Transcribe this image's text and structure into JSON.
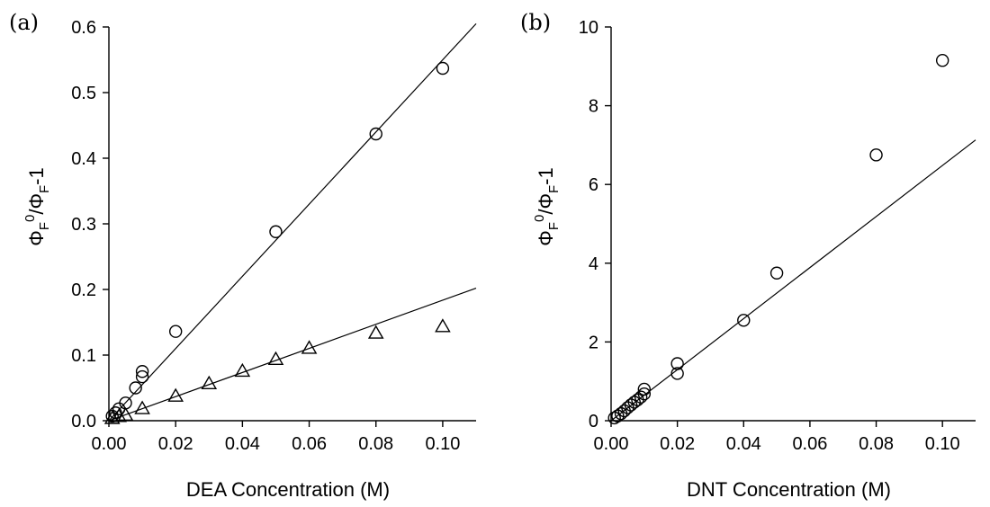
{
  "chart_data": [
    {
      "type": "scatter",
      "panel": "(a)",
      "xlabel": "DEA Concentration (M)",
      "ylabel": {
        "base": "Φ",
        "sub1": "F",
        "sup": "0",
        "mid": "/Φ",
        "sub2": "F",
        "tail": "-1"
      },
      "xlim": [
        0,
        0.11
      ],
      "ylim": [
        0,
        0.6
      ],
      "x_ticks": [
        0.0,
        0.02,
        0.04,
        0.06,
        0.08,
        0.1
      ],
      "x_tick_labels": [
        "0.00",
        "0.02",
        "0.04",
        "0.06",
        "0.08",
        "0.10"
      ],
      "y_ticks": [
        0.0,
        0.1,
        0.2,
        0.3,
        0.4,
        0.5,
        0.6
      ],
      "y_tick_labels": [
        "0.0",
        "0.1",
        "0.2",
        "0.3",
        "0.4",
        "0.5",
        "0.6"
      ],
      "grid": false,
      "series": [
        {
          "marker": "circle",
          "x": [
            0.001,
            0.002,
            0.003,
            0.005,
            0.008,
            0.01,
            0.01,
            0.02,
            0.05,
            0.08,
            0.1
          ],
          "y": [
            0.007,
            0.012,
            0.018,
            0.027,
            0.05,
            0.067,
            0.075,
            0.136,
            0.288,
            0.437,
            0.537
          ],
          "fit": {
            "x": [
              0,
              0.11
            ],
            "y": [
              0,
              0.605
            ]
          }
        },
        {
          "marker": "triangle",
          "x": [
            0.001,
            0.003,
            0.005,
            0.01,
            0.02,
            0.03,
            0.04,
            0.05,
            0.06,
            0.08,
            0.1
          ],
          "y": [
            0.003,
            0.006,
            0.008,
            0.018,
            0.037,
            0.056,
            0.075,
            0.093,
            0.11,
            0.133,
            0.143
          ],
          "fit": {
            "x": [
              0,
              0.11
            ],
            "y": [
              0,
              0.202
            ]
          }
        }
      ]
    },
    {
      "type": "scatter",
      "panel": "(b)",
      "xlabel": "DNT Concentration (M)",
      "ylabel": {
        "base": "Φ",
        "sub1": "F",
        "sup": "0",
        "mid": "/Φ",
        "sub2": "F",
        "tail": "-1"
      },
      "xlim": [
        0,
        0.11
      ],
      "ylim": [
        0,
        10
      ],
      "x_ticks": [
        0.0,
        0.02,
        0.04,
        0.06,
        0.08,
        0.1
      ],
      "x_tick_labels": [
        "0.00",
        "0.02",
        "0.04",
        "0.06",
        "0.08",
        "0.10"
      ],
      "y_ticks": [
        0,
        2,
        4,
        6,
        8,
        10
      ],
      "y_tick_labels": [
        "0",
        "2",
        "4",
        "6",
        "8",
        "10"
      ],
      "grid": false,
      "series": [
        {
          "marker": "circle",
          "x": [
            0.001,
            0.002,
            0.003,
            0.004,
            0.005,
            0.006,
            0.007,
            0.008,
            0.009,
            0.01,
            0.01,
            0.02,
            0.02,
            0.04,
            0.05,
            0.08,
            0.1
          ],
          "y": [
            0.07,
            0.12,
            0.18,
            0.25,
            0.33,
            0.4,
            0.47,
            0.53,
            0.6,
            0.68,
            0.8,
            1.2,
            1.45,
            2.55,
            3.75,
            6.75,
            9.15
          ],
          "fit": {
            "x": [
              0,
              0.11
            ],
            "y": [
              0,
              7.13
            ]
          }
        }
      ]
    }
  ]
}
